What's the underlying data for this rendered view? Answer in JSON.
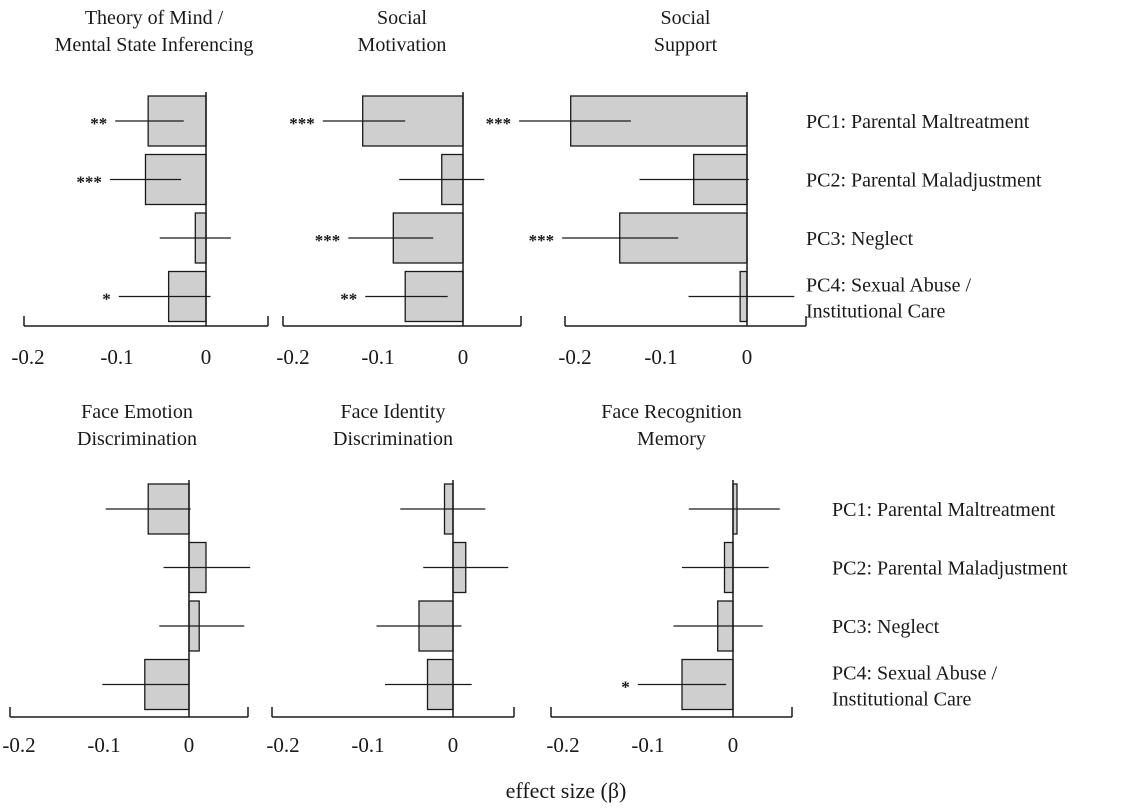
{
  "xlabel": "effect size (β)",
  "row_labels": {
    "top": [
      [
        "PC1: Parental Maltreatment"
      ],
      [
        "PC2: Parental Maladjustment"
      ],
      [
        "PC3: Neglect"
      ],
      [
        "PC4: Sexual Abuse /",
        "Institutional Care"
      ]
    ],
    "bottom": [
      [
        "PC1: Parental Maltreatment"
      ],
      [
        "PC2: Parental Maladjustment"
      ],
      [
        "PC3: Neglect"
      ],
      [
        "PC4: Sexual Abuse /",
        "Institutional Care"
      ]
    ]
  },
  "chart_data": [
    {
      "type": "bar",
      "title": [
        "Theory of Mind  /",
        "Mental State Inferencing"
      ],
      "categories": [
        "PC1: Parental Maltreatment",
        "PC2: Parental Maladjustment",
        "PC3: Neglect",
        "PC4: Sexual Abuse / Institutional Care"
      ],
      "values": [
        -0.065,
        -0.068,
        -0.012,
        -0.042
      ],
      "ci": [
        [
          -0.102,
          -0.025
        ],
        [
          -0.108,
          -0.028
        ],
        [
          -0.052,
          0.028
        ],
        [
          -0.098,
          0.005
        ]
      ],
      "significance": [
        "**",
        "***",
        "",
        "*"
      ],
      "xticks": [
        -0.2,
        -0.1,
        0
      ],
      "xlim": [
        -0.28,
        0.07
      ]
    },
    {
      "type": "bar",
      "title": [
        "Social",
        "Motivation"
      ],
      "categories": [
        "PC1: Parental Maltreatment",
        "PC2: Parental Maladjustment",
        "PC3: Neglect",
        "PC4: Sexual Abuse / Institutional Care"
      ],
      "values": [
        -0.118,
        -0.025,
        -0.082,
        -0.068
      ],
      "ci": [
        [
          -0.165,
          -0.068
        ],
        [
          -0.075,
          0.025
        ],
        [
          -0.135,
          -0.035
        ],
        [
          -0.115,
          -0.018
        ]
      ],
      "significance": [
        "***",
        "",
        "***",
        "**"
      ],
      "xticks": [
        -0.2,
        -0.1,
        0
      ],
      "xlim": [
        -0.28,
        0.07
      ]
    },
    {
      "type": "bar",
      "title": [
        "Social",
        "Support"
      ],
      "categories": [
        "PC1: Parental Maltreatment",
        "PC2: Parental Maladjustment",
        "PC3: Neglect",
        "PC4: Sexual Abuse / Institutional Care"
      ],
      "values": [
        -0.205,
        -0.062,
        -0.148,
        -0.008
      ],
      "ci": [
        [
          -0.265,
          -0.135
        ],
        [
          -0.125,
          0.002
        ],
        [
          -0.215,
          -0.08
        ],
        [
          -0.068,
          0.055
        ]
      ],
      "significance": [
        "***",
        "",
        "***",
        ""
      ],
      "xticks": [
        -0.2,
        -0.1,
        0
      ],
      "xlim": [
        -0.28,
        0.07
      ]
    },
    {
      "type": "bar",
      "title": [
        "Face Emotion",
        "Discrimination"
      ],
      "categories": [
        "PC1: Parental Maltreatment",
        "PC2: Parental Maladjustment",
        "PC3: Neglect",
        "PC4: Sexual Abuse / Institutional Care"
      ],
      "values": [
        -0.048,
        0.02,
        0.012,
        -0.052
      ],
      "ci": [
        [
          -0.098,
          0.002
        ],
        [
          -0.03,
          0.072
        ],
        [
          -0.035,
          0.065
        ],
        [
          -0.102,
          0.0
        ]
      ],
      "significance": [
        "",
        "",
        "",
        ""
      ],
      "xticks": [
        -0.2,
        -0.1,
        0
      ],
      "xlim": [
        -0.28,
        0.07
      ]
    },
    {
      "type": "bar",
      "title": [
        "Face Identity",
        "Discrimination"
      ],
      "categories": [
        "PC1: Parental Maltreatment",
        "PC2: Parental Maladjustment",
        "PC3: Neglect",
        "PC4: Sexual Abuse / Institutional Care"
      ],
      "values": [
        -0.01,
        0.015,
        -0.04,
        -0.03
      ],
      "ci": [
        [
          -0.062,
          0.038
        ],
        [
          -0.035,
          0.065
        ],
        [
          -0.09,
          0.01
        ],
        [
          -0.08,
          0.022
        ]
      ],
      "significance": [
        "",
        "",
        "",
        ""
      ],
      "xticks": [
        -0.2,
        -0.1,
        0
      ],
      "xlim": [
        -0.28,
        0.07
      ]
    },
    {
      "type": "bar",
      "title": [
        "Face Recognition",
        "Memory"
      ],
      "categories": [
        "PC1: Parental Maltreatment",
        "PC2: Parental Maladjustment",
        "PC3: Neglect",
        "PC4: Sexual Abuse / Institutional Care"
      ],
      "values": [
        0.002,
        -0.01,
        -0.018,
        -0.06
      ],
      "ci": [
        [
          -0.052,
          0.055
        ],
        [
          -0.06,
          0.042
        ],
        [
          -0.07,
          0.035
        ],
        [
          -0.112,
          -0.008
        ]
      ],
      "significance": [
        "",
        "",
        "",
        "*"
      ],
      "xticks": [
        -0.2,
        -0.1,
        0
      ],
      "xlim": [
        -0.28,
        0.07
      ]
    }
  ]
}
